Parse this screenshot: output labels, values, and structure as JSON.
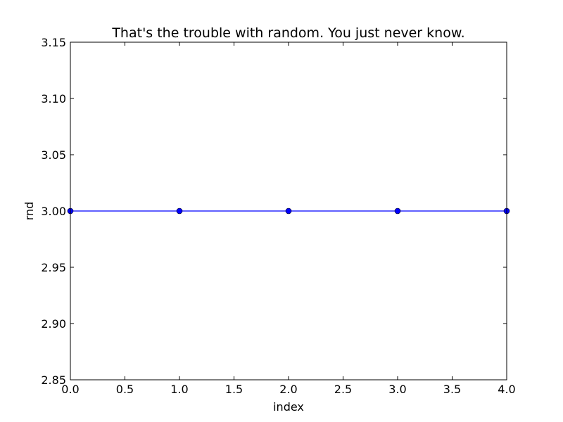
{
  "chart_data": {
    "type": "line",
    "title": "That's the trouble with random. You just never know.",
    "xlabel": "index",
    "ylabel": "rnd",
    "x": [
      0,
      1,
      2,
      3,
      4
    ],
    "series": [
      {
        "values": [
          3.0,
          3.0,
          3.0,
          3.0,
          3.0
        ],
        "color": "#0000ff",
        "marker": "circle"
      }
    ],
    "xlim": [
      0,
      4
    ],
    "ylim": [
      2.85,
      3.15
    ],
    "xticks": [
      "0.0",
      "0.5",
      "1.0",
      "1.5",
      "2.0",
      "2.5",
      "3.0",
      "3.5",
      "4.0"
    ],
    "yticks": [
      "2.85",
      "2.90",
      "2.95",
      "3.00",
      "3.05",
      "3.10",
      "3.15"
    ],
    "grid": false
  }
}
